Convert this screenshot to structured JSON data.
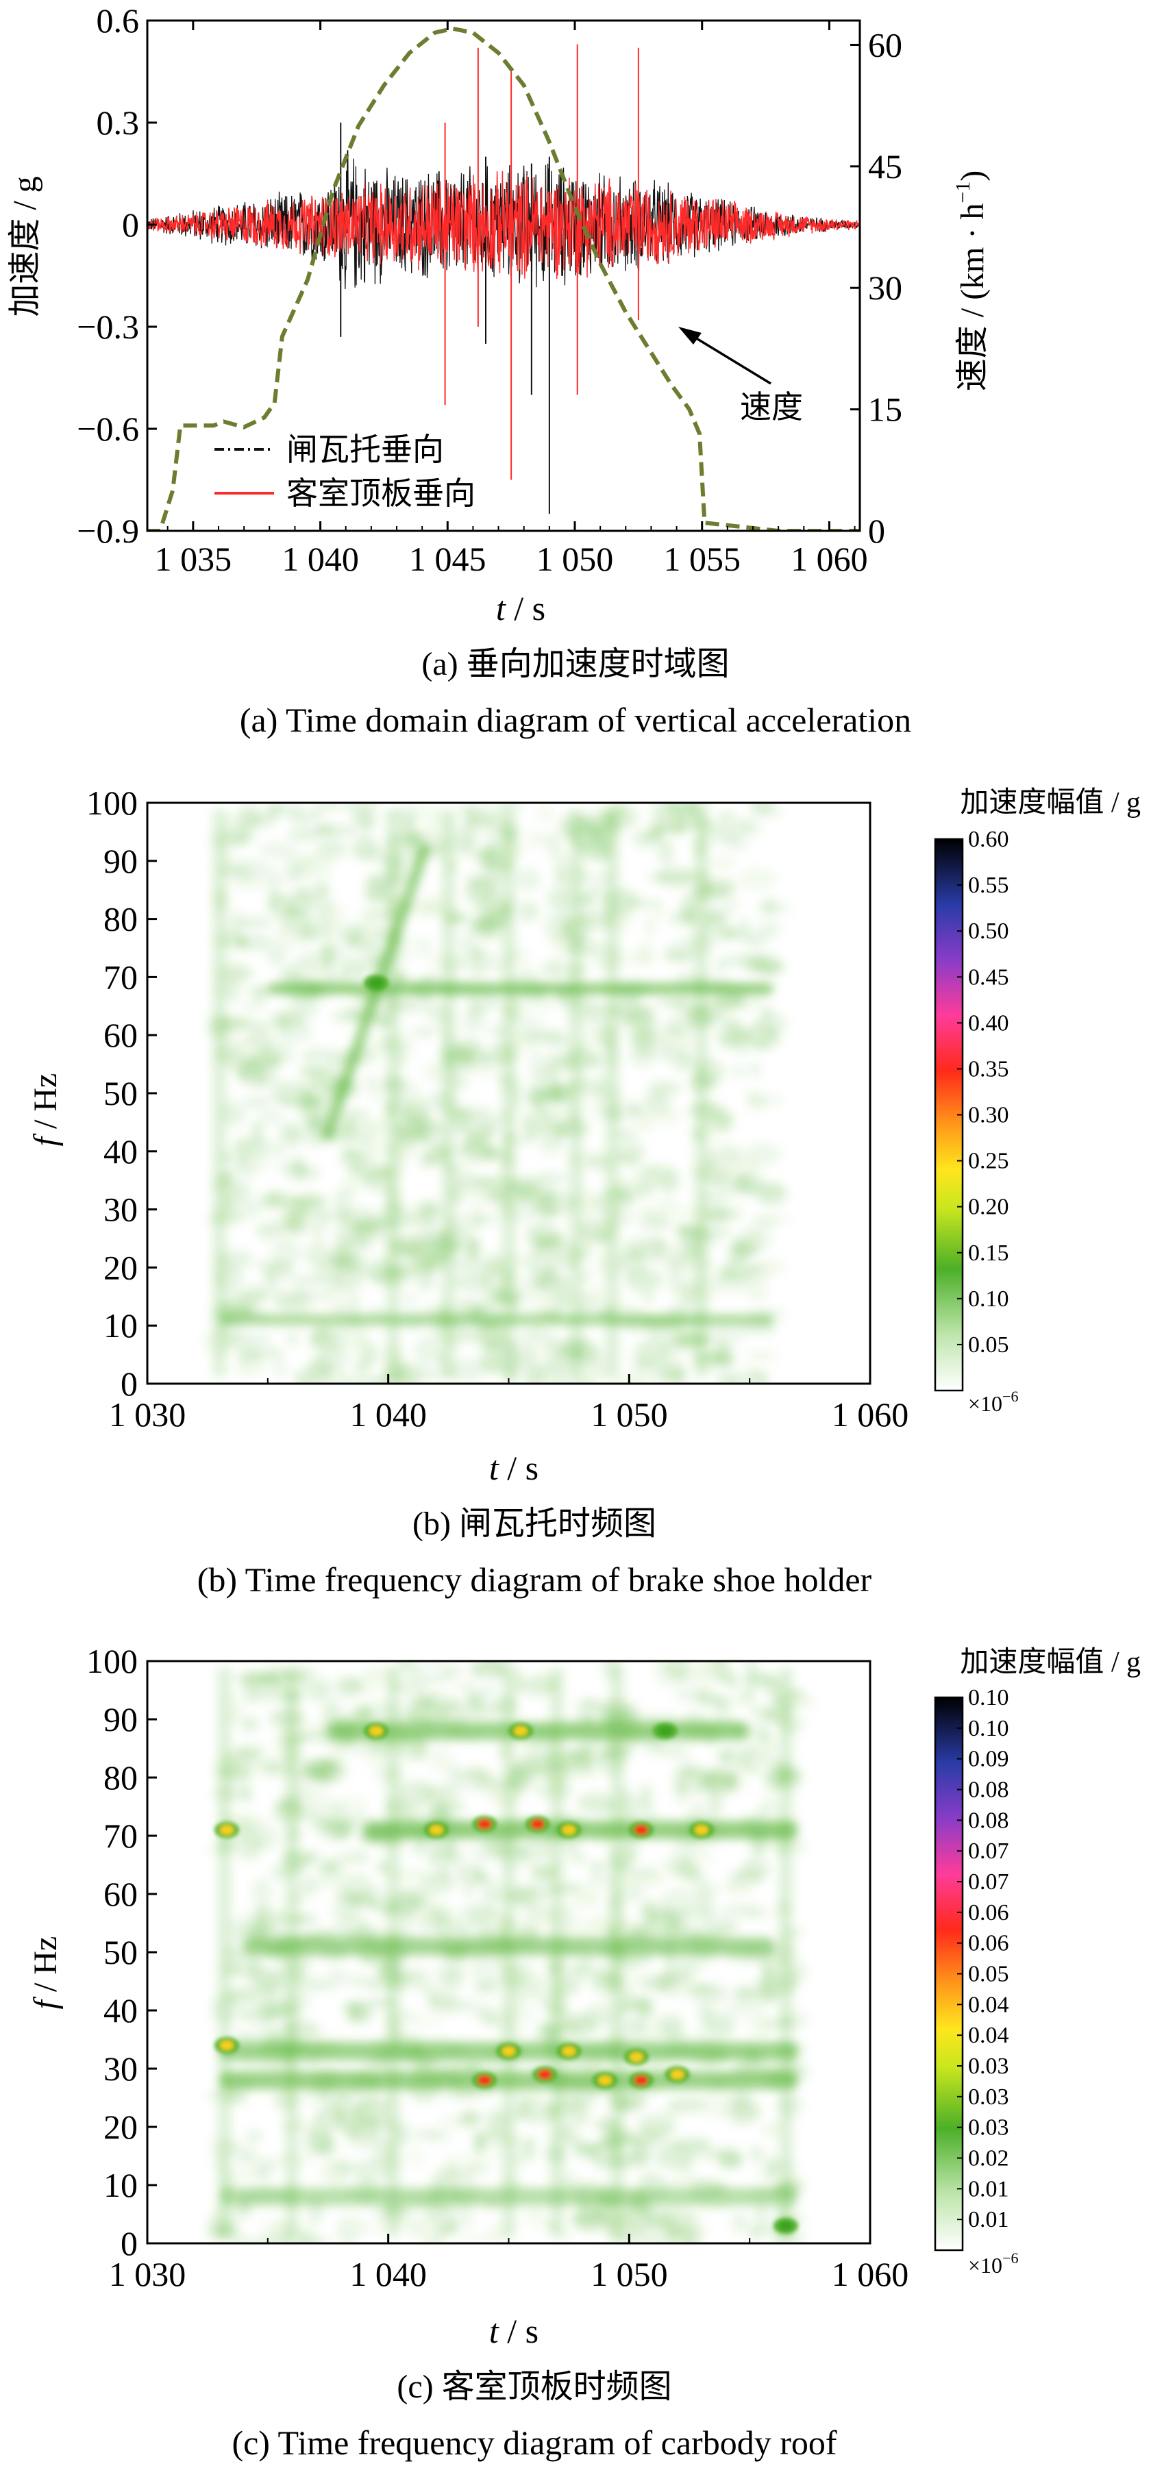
{
  "colors": {
    "black_series": "#111111",
    "red_series": "#ff2a2a",
    "speed_curve": "#6b7d2f",
    "spec_green": "#4caf28"
  },
  "chart_data": [
    {
      "id": "a",
      "type": "line",
      "xlabel_italic": "t",
      "xlabel_unit": "/ s",
      "ylabel_left_cjk": "加速度",
      "ylabel_left_unit": "/ g",
      "ylabel_right_cjk": "速度",
      "ylabel_right_unit": "/ (km · h",
      "ylabel_right_sup": "−1",
      "ylabel_right_close": ")",
      "xlim": [
        1033.2,
        1061.2
      ],
      "ylim_left": [
        -0.9,
        0.6
      ],
      "ylim_right": [
        0,
        63
      ],
      "xticks": [
        1035,
        1040,
        1045,
        1050,
        1055,
        1060
      ],
      "xtick_labels": [
        "1 035",
        "1 040",
        "1 045",
        "1 050",
        "1 055",
        "1 060"
      ],
      "yticks_left": [
        0.6,
        0.3,
        0,
        -0.3,
        -0.6,
        -0.9
      ],
      "ytick_labels_left": [
        "0.6",
        "0.3",
        "0",
        "−0.3",
        "−0.6",
        "−0.9"
      ],
      "yticks_right": [
        60,
        45,
        30,
        15,
        0
      ],
      "ytick_labels_right": [
        "60",
        "45",
        "30",
        "15",
        "0"
      ],
      "legend": [
        "闸瓦托垂向",
        "客室顶板垂向"
      ],
      "annotation": "速度",
      "series": [
        {
          "name": "闸瓦托垂向",
          "style": "dash-dot",
          "envelope_t": [
            1033.2,
            1035,
            1037,
            1039,
            1040.5,
            1041,
            1043,
            1045,
            1047,
            1049,
            1051,
            1053,
            1055,
            1057,
            1059,
            1061.2
          ],
          "envelope_amp": [
            0.02,
            0.05,
            0.08,
            0.11,
            0.15,
            0.24,
            0.17,
            0.19,
            0.19,
            0.21,
            0.17,
            0.15,
            0.1,
            0.06,
            0.03,
            0.01
          ],
          "spikes": [
            {
              "t": 1040.8,
              "lo": -0.33,
              "hi": 0.3
            },
            {
              "t": 1046.5,
              "lo": -0.35,
              "hi": 0.2
            },
            {
              "t": 1049.0,
              "lo": -0.85,
              "hi": 0.2
            },
            {
              "t": 1048.3,
              "lo": -0.5,
              "hi": 0.18
            }
          ]
        },
        {
          "name": "客室顶板垂向",
          "style": "solid",
          "envelope_t": [
            1033.2,
            1035,
            1037,
            1039,
            1041,
            1043,
            1045,
            1047,
            1049,
            1051,
            1053,
            1055,
            1057,
            1059,
            1061.2
          ],
          "envelope_amp": [
            0.02,
            0.04,
            0.07,
            0.09,
            0.12,
            0.14,
            0.16,
            0.17,
            0.17,
            0.16,
            0.13,
            0.1,
            0.06,
            0.03,
            0.015
          ],
          "spikes": [
            {
              "t": 1044.9,
              "lo": -0.53,
              "hi": 0.3
            },
            {
              "t": 1046.2,
              "lo": -0.3,
              "hi": 0.52
            },
            {
              "t": 1047.5,
              "lo": -0.75,
              "hi": 0.45
            },
            {
              "t": 1050.1,
              "lo": -0.5,
              "hi": 0.53
            },
            {
              "t": 1052.5,
              "lo": -0.28,
              "hi": 0.52
            }
          ]
        },
        {
          "name": "速度",
          "style": "dashed",
          "t": [
            1033.2,
            1033.7,
            1034.2,
            1034.5,
            1035.8,
            1036.2,
            1037.0,
            1037.8,
            1038.2,
            1038.5,
            1039.5,
            1040.5,
            1041.5,
            1042.5,
            1043.5,
            1044.5,
            1045.2,
            1046.0,
            1047.0,
            1048.0,
            1049.0,
            1050.0,
            1051.0,
            1052.0,
            1053.0,
            1053.8,
            1054.5,
            1054.9,
            1055.1,
            1058.0,
            1061.2
          ],
          "v": [
            0,
            0,
            5,
            13,
            13,
            13.5,
            12.8,
            14,
            15.8,
            24,
            31,
            42,
            50,
            55,
            59,
            61.5,
            62,
            61.5,
            59,
            55,
            48,
            40,
            33,
            27,
            22,
            18,
            15,
            12,
            1,
            0,
            0
          ]
        }
      ]
    },
    {
      "id": "b",
      "type": "heatmap",
      "xlabel_italic": "t",
      "xlabel_unit": "/ s",
      "ylabel_italic": "f",
      "ylabel_unit": "/ Hz",
      "xlim": [
        1030,
        1060
      ],
      "ylim": [
        0,
        100
      ],
      "xticks": [
        1030,
        1040,
        1050,
        1060
      ],
      "xtick_labels": [
        "1 030",
        "1 040",
        "1 050",
        "1 060"
      ],
      "yticks": [
        0,
        10,
        20,
        30,
        40,
        50,
        60,
        70,
        80,
        90,
        100
      ],
      "colorbar_title_cjk": "加速度幅值",
      "colorbar_title_unit": "/ g",
      "colorbar_ticks": [
        "0.05",
        "0.10",
        "0.15",
        "0.20",
        "0.25",
        "0.30",
        "0.35",
        "0.40",
        "0.45",
        "0.50",
        "0.55",
        "0.60"
      ],
      "colorbar_max": 0.6,
      "colorbar_scale_note": "×10",
      "colorbar_scale_sup": "−6",
      "activity_range": [
        1033,
        1056
      ],
      "horizontal_bands": [
        {
          "f": 68,
          "t0": 1035,
          "t1": 1056,
          "level": 0.09
        },
        {
          "f": 11,
          "t0": 1033,
          "t1": 1056,
          "level": 0.05
        }
      ],
      "vertical_bands": [
        1033.0,
        1040.2,
        1042.5,
        1045.0,
        1047.8,
        1049.3,
        1053.0
      ],
      "sweep": {
        "t0": 1037.5,
        "f0": 43,
        "t1": 1041.5,
        "f1": 92,
        "level": 0.12
      },
      "hot_spots": [
        {
          "t": 1039.5,
          "f": 69,
          "level": 0.12
        }
      ]
    },
    {
      "id": "c",
      "type": "heatmap",
      "xlabel_italic": "t",
      "xlabel_unit": "/ s",
      "ylabel_italic": "f",
      "ylabel_unit": "/ Hz",
      "xlim": [
        1030,
        1060
      ],
      "ylim": [
        0,
        100
      ],
      "xticks": [
        1030,
        1040,
        1050,
        1060
      ],
      "xtick_labels": [
        "1 030",
        "1 040",
        "1 050",
        "1 060"
      ],
      "yticks": [
        0,
        10,
        20,
        30,
        40,
        50,
        60,
        70,
        80,
        90,
        100
      ],
      "colorbar_title_cjk": "加速度幅值",
      "colorbar_title_unit": "/ g",
      "colorbar_ticks": [
        "0.01",
        "0.01",
        "0.02",
        "0.03",
        "0.03",
        "0.03",
        "0.04",
        "0.04",
        "0.05",
        "0.06",
        "0.06",
        "0.07",
        "0.07",
        "0.08",
        "0.08",
        "0.09",
        "0.10",
        "0.10"
      ],
      "colorbar_max": 0.1,
      "colorbar_scale_note": "×10",
      "colorbar_scale_sup": "−6",
      "activity_range": [
        1033,
        1057
      ],
      "horizontal_bands": [
        {
          "f": 88,
          "t0": 1037.5,
          "t1": 1055,
          "level": 0.025
        },
        {
          "f": 71,
          "t0": 1039,
          "t1": 1057,
          "level": 0.028
        },
        {
          "f": 51,
          "t0": 1034,
          "t1": 1056,
          "level": 0.022
        },
        {
          "f": 33,
          "t0": 1033,
          "t1": 1057,
          "level": 0.024
        },
        {
          "f": 28,
          "t0": 1033,
          "t1": 1057,
          "level": 0.026
        },
        {
          "f": 8,
          "t0": 1033,
          "t1": 1057,
          "level": 0.012
        }
      ],
      "vertical_bands": [
        1033.2,
        1036.0,
        1040.2,
        1045.0,
        1047.0,
        1049.5,
        1056.5
      ],
      "hot_spots": [
        {
          "t": 1039.5,
          "f": 88,
          "level": 0.045
        },
        {
          "t": 1045.5,
          "f": 88,
          "level": 0.035
        },
        {
          "t": 1051.5,
          "f": 88,
          "level": 0.03
        },
        {
          "t": 1042.0,
          "f": 71,
          "level": 0.035
        },
        {
          "t": 1044.0,
          "f": 72,
          "level": 0.065
        },
        {
          "t": 1046.2,
          "f": 72,
          "level": 0.075
        },
        {
          "t": 1047.5,
          "f": 71,
          "level": 0.045
        },
        {
          "t": 1050.5,
          "f": 71,
          "level": 0.07
        },
        {
          "t": 1053.0,
          "f": 71,
          "level": 0.04
        },
        {
          "t": 1033.3,
          "f": 71,
          "level": 0.035
        },
        {
          "t": 1033.3,
          "f": 34,
          "level": 0.035
        },
        {
          "t": 1044.0,
          "f": 28,
          "level": 0.065
        },
        {
          "t": 1045.0,
          "f": 33,
          "level": 0.04
        },
        {
          "t": 1046.5,
          "f": 29,
          "level": 0.07
        },
        {
          "t": 1047.5,
          "f": 33,
          "level": 0.045
        },
        {
          "t": 1049.0,
          "f": 28,
          "level": 0.04
        },
        {
          "t": 1050.5,
          "f": 28,
          "level": 0.075
        },
        {
          "t": 1050.3,
          "f": 32,
          "level": 0.04
        },
        {
          "t": 1052.0,
          "f": 29,
          "level": 0.04
        },
        {
          "t": 1056.5,
          "f": 3,
          "level": 0.03
        }
      ]
    }
  ],
  "captions": [
    {
      "cn_label": "(a)",
      "cn": "垂向加速度时域图",
      "en": "(a)  Time domain diagram of vertical acceleration"
    },
    {
      "cn_label": "(b)",
      "cn": "闸瓦托时频图",
      "en": "(b)  Time frequency diagram of brake shoe holder"
    },
    {
      "cn_label": "(c)",
      "cn": "客室顶板时频图",
      "en": "(c)  Time frequency diagram of carbody roof"
    }
  ]
}
